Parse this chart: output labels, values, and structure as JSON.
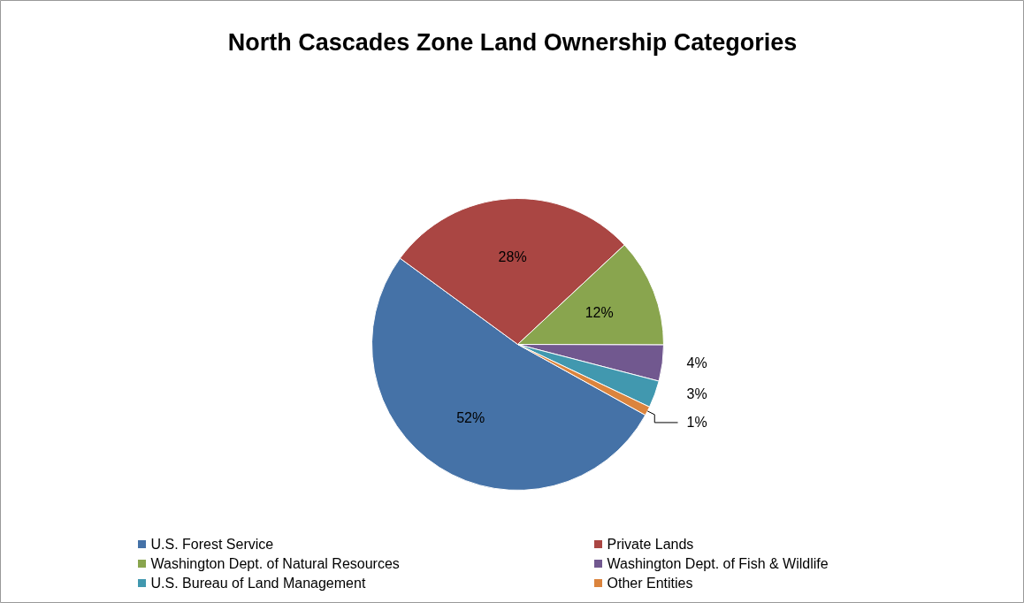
{
  "chart_data": {
    "type": "pie",
    "title": "North Cascades Zone Land Ownership Categories",
    "categories": [
      "U.S. Forest Service",
      "Private Lands",
      "Washington Dept. of Natural Resources",
      "Washington Dept. of Fish & Wildlife",
      "U.S. Bureau of Land Management",
      "Other Entities"
    ],
    "values": [
      52,
      28,
      12,
      4,
      3,
      1
    ],
    "colors": [
      "#4572a7",
      "#aa4643",
      "#89a54e",
      "#71588f",
      "#4198af",
      "#db843d"
    ],
    "value_labels": [
      "52%",
      "28%",
      "12%",
      "4%",
      "3%",
      "1%"
    ],
    "legend": "bottom"
  }
}
